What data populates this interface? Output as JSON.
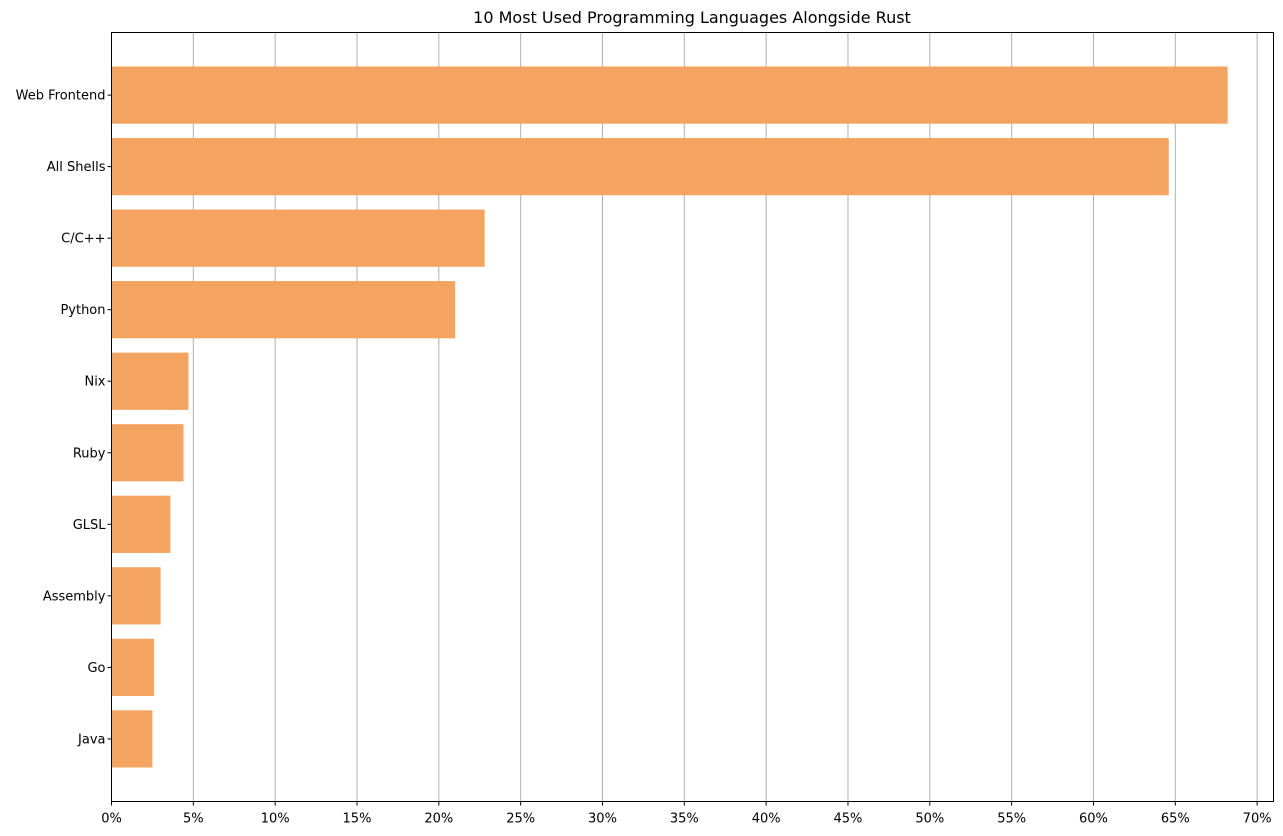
{
  "chart_data": {
    "type": "bar",
    "orientation": "horizontal",
    "title": "10 Most Used Programming Languages Alongside Rust",
    "xlabel": "",
    "ylabel": "",
    "categories": [
      "Web Frontend",
      "All Shells",
      "C/C++",
      "Python",
      "Nix",
      "Ruby",
      "GLSL",
      "Assembly",
      "Go",
      "Java"
    ],
    "values": [
      68.2,
      64.6,
      22.8,
      21.0,
      4.7,
      4.4,
      3.6,
      3.0,
      2.6,
      2.5
    ],
    "xlim": [
      0,
      71
    ],
    "xticks": [
      0,
      5,
      10,
      15,
      20,
      25,
      30,
      35,
      40,
      45,
      50,
      55,
      60,
      65,
      70
    ],
    "xtick_labels": [
      "0%",
      "5%",
      "10%",
      "15%",
      "20%",
      "25%",
      "30%",
      "35%",
      "40%",
      "45%",
      "50%",
      "55%",
      "60%",
      "65%",
      "70%"
    ],
    "grid": "vertical",
    "bar_color": "#f4a460",
    "grid_color": "#b0b0b0"
  }
}
